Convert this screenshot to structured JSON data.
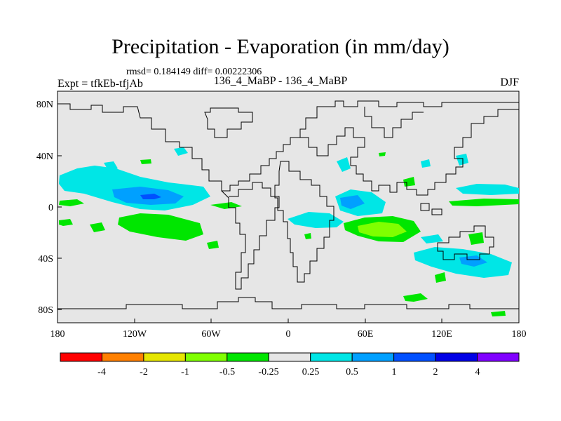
{
  "header": {
    "title": "Precipitation - Evaporation (in mm/day)",
    "stats": "rmsd= 0.184149 diff= 0.00222306",
    "expt": "Expt = tfkEb-tfjAb",
    "case": "136_4_MaBP - 136_4_MaBP",
    "season": "DJF"
  },
  "axes": {
    "y_ticks": [
      "80N",
      "40N",
      "0",
      "40S",
      "80S"
    ],
    "x_ticks": [
      "180",
      "120W",
      "60W",
      "0",
      "60E",
      "120E",
      "180"
    ]
  },
  "legend": {
    "labels": [
      "-4",
      "-2",
      "-1",
      "-0.5",
      "-0.25",
      "0.25",
      "0.5",
      "1",
      "2",
      "4"
    ],
    "colors": [
      "#ff0000",
      "#ff8000",
      "#e6e600",
      "#80ff00",
      "#00e600",
      "#e6e6e6",
      "#00e6e6",
      "#00a0ff",
      "#0050ff",
      "#0000e6",
      "#8000ff"
    ]
  },
  "map": {
    "background_color": "#e6e6e6",
    "coastline_color": "#000000"
  }
}
